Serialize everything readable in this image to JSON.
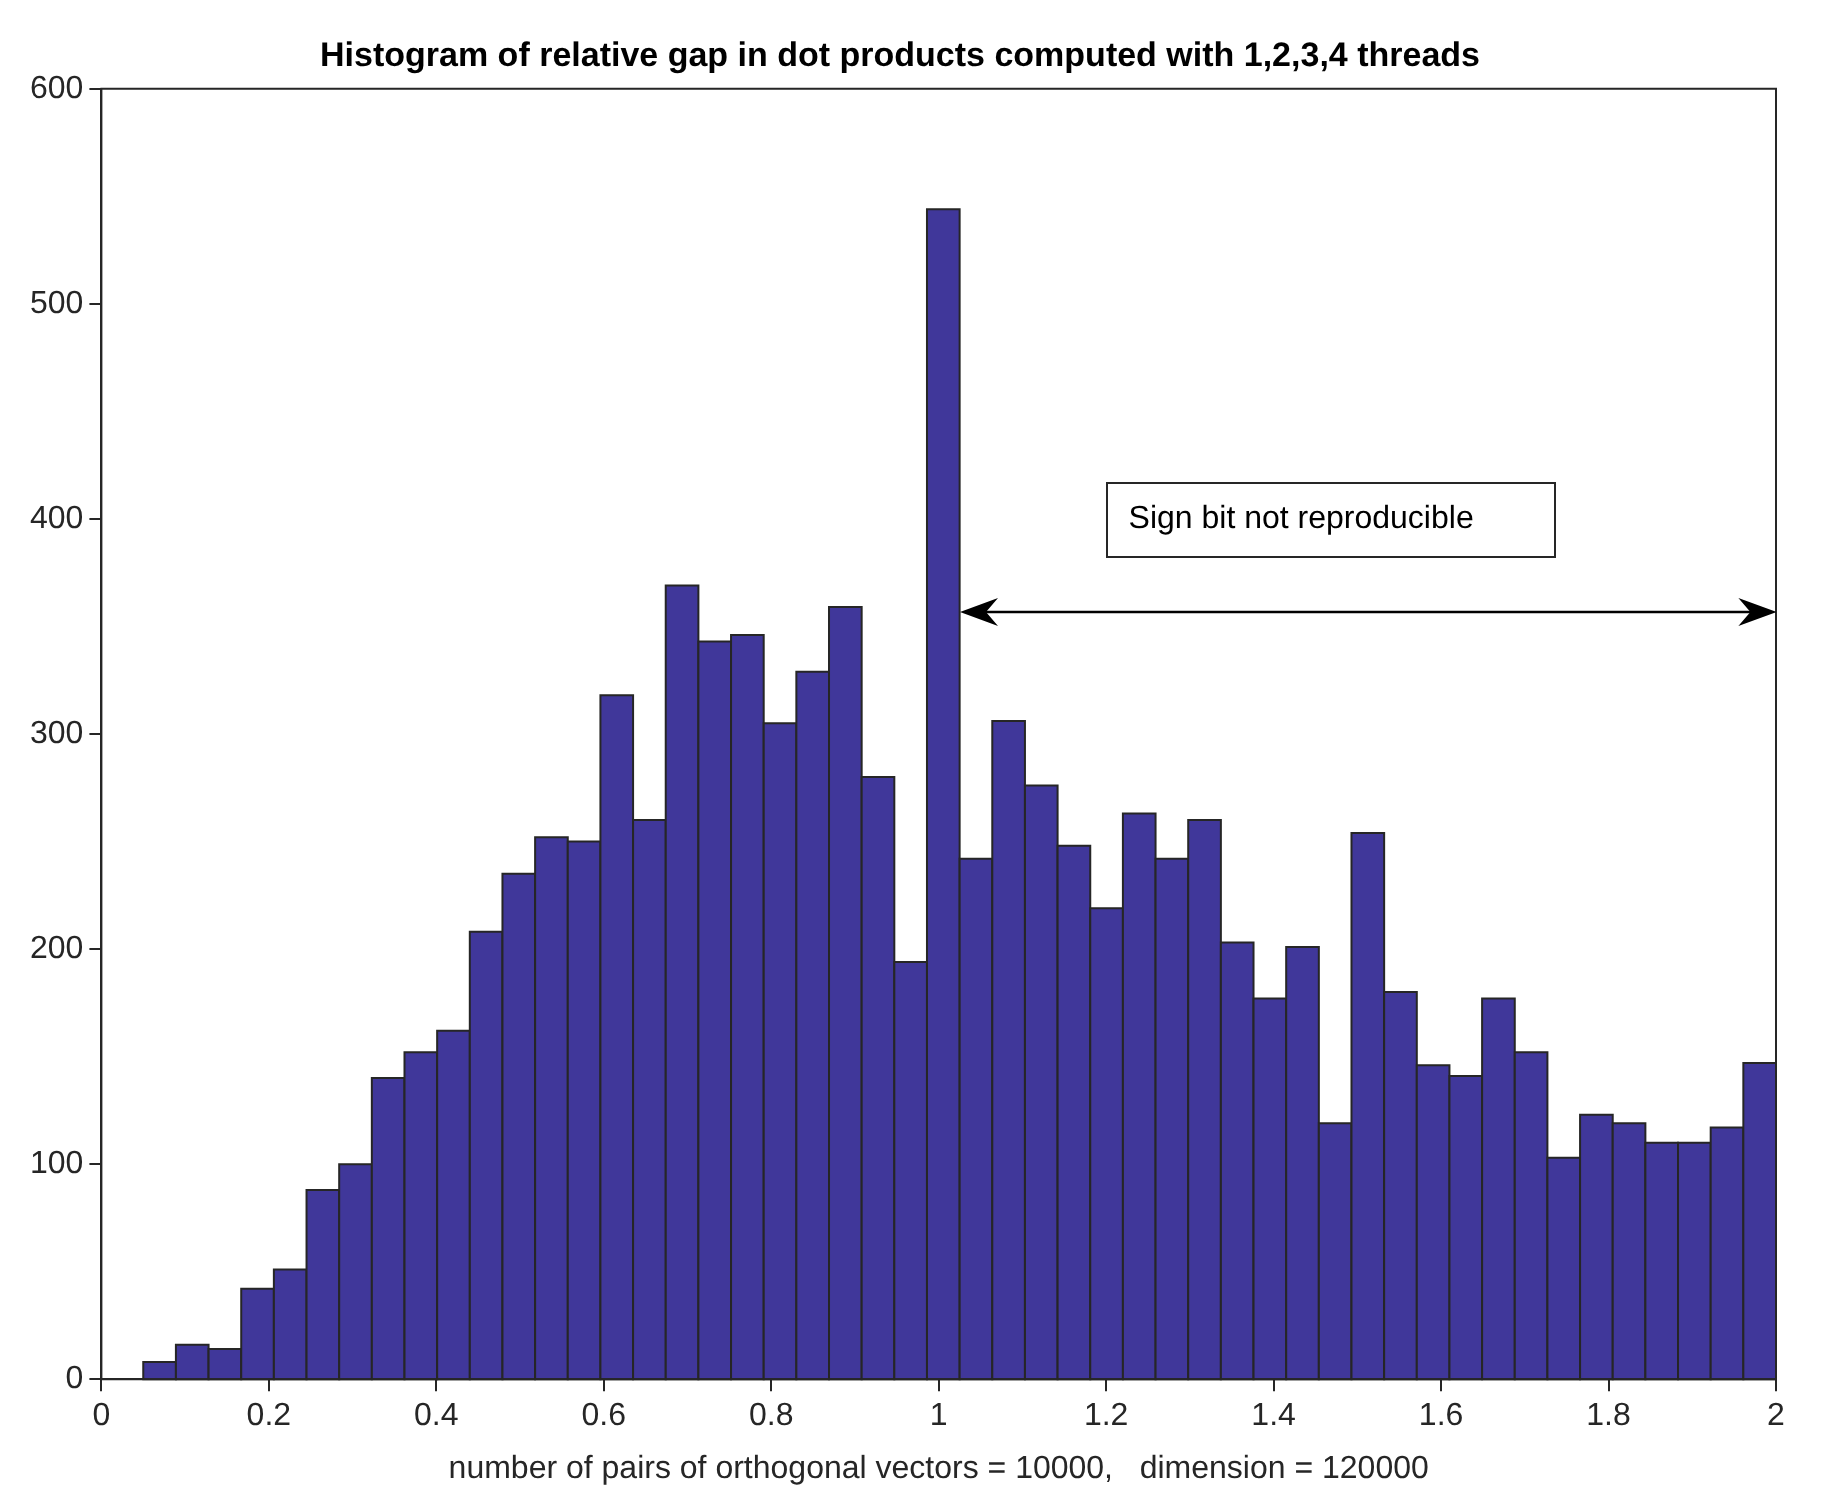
{
  "chart_data": {
    "type": "histogram",
    "title": "Histogram of relative gap in dot products computed with 1,2,3,4 threads",
    "xlabel": "number of pairs of orthogonal vectors = 10000,   dimension = 120000",
    "bins": [
      0.05,
      0.089,
      0.128,
      0.167,
      0.206,
      0.245,
      0.284,
      0.323,
      0.362,
      0.401,
      0.44,
      0.479,
      0.518,
      0.557,
      0.596,
      0.635,
      0.674,
      0.713,
      0.752,
      0.791,
      0.83,
      0.869,
      0.908,
      0.947,
      0.986,
      1.025,
      1.064,
      1.103,
      1.142,
      1.181,
      1.22,
      1.259,
      1.298,
      1.337,
      1.376,
      1.415,
      1.454,
      1.493,
      1.532,
      1.571,
      1.61,
      1.649,
      1.688,
      1.727,
      1.766,
      1.805,
      1.844,
      1.883,
      1.922,
      1.961,
      2.0
    ],
    "values": [
      8,
      16,
      14,
      42,
      51,
      88,
      100,
      140,
      152,
      162,
      208,
      235,
      252,
      250,
      318,
      260,
      369,
      343,
      346,
      305,
      329,
      359,
      280,
      194,
      544,
      242,
      306,
      276,
      248,
      219,
      263,
      242,
      260,
      203,
      177,
      201,
      119,
      254,
      180,
      146,
      141,
      177,
      152,
      103,
      123,
      119,
      110,
      110,
      117,
      147
    ],
    "color": "#40379a",
    "xlim": [
      0,
      2
    ],
    "xticks": [
      0,
      0.2,
      0.4,
      0.6,
      0.8,
      1,
      1.2,
      1.4,
      1.6,
      1.8,
      2
    ],
    "ylim": [
      0,
      600
    ],
    "yticks": [
      0,
      100,
      200,
      300,
      400,
      500,
      600
    ],
    "grid": false,
    "legend": false,
    "annotations": [
      "Sign bit not reproducible"
    ]
  }
}
